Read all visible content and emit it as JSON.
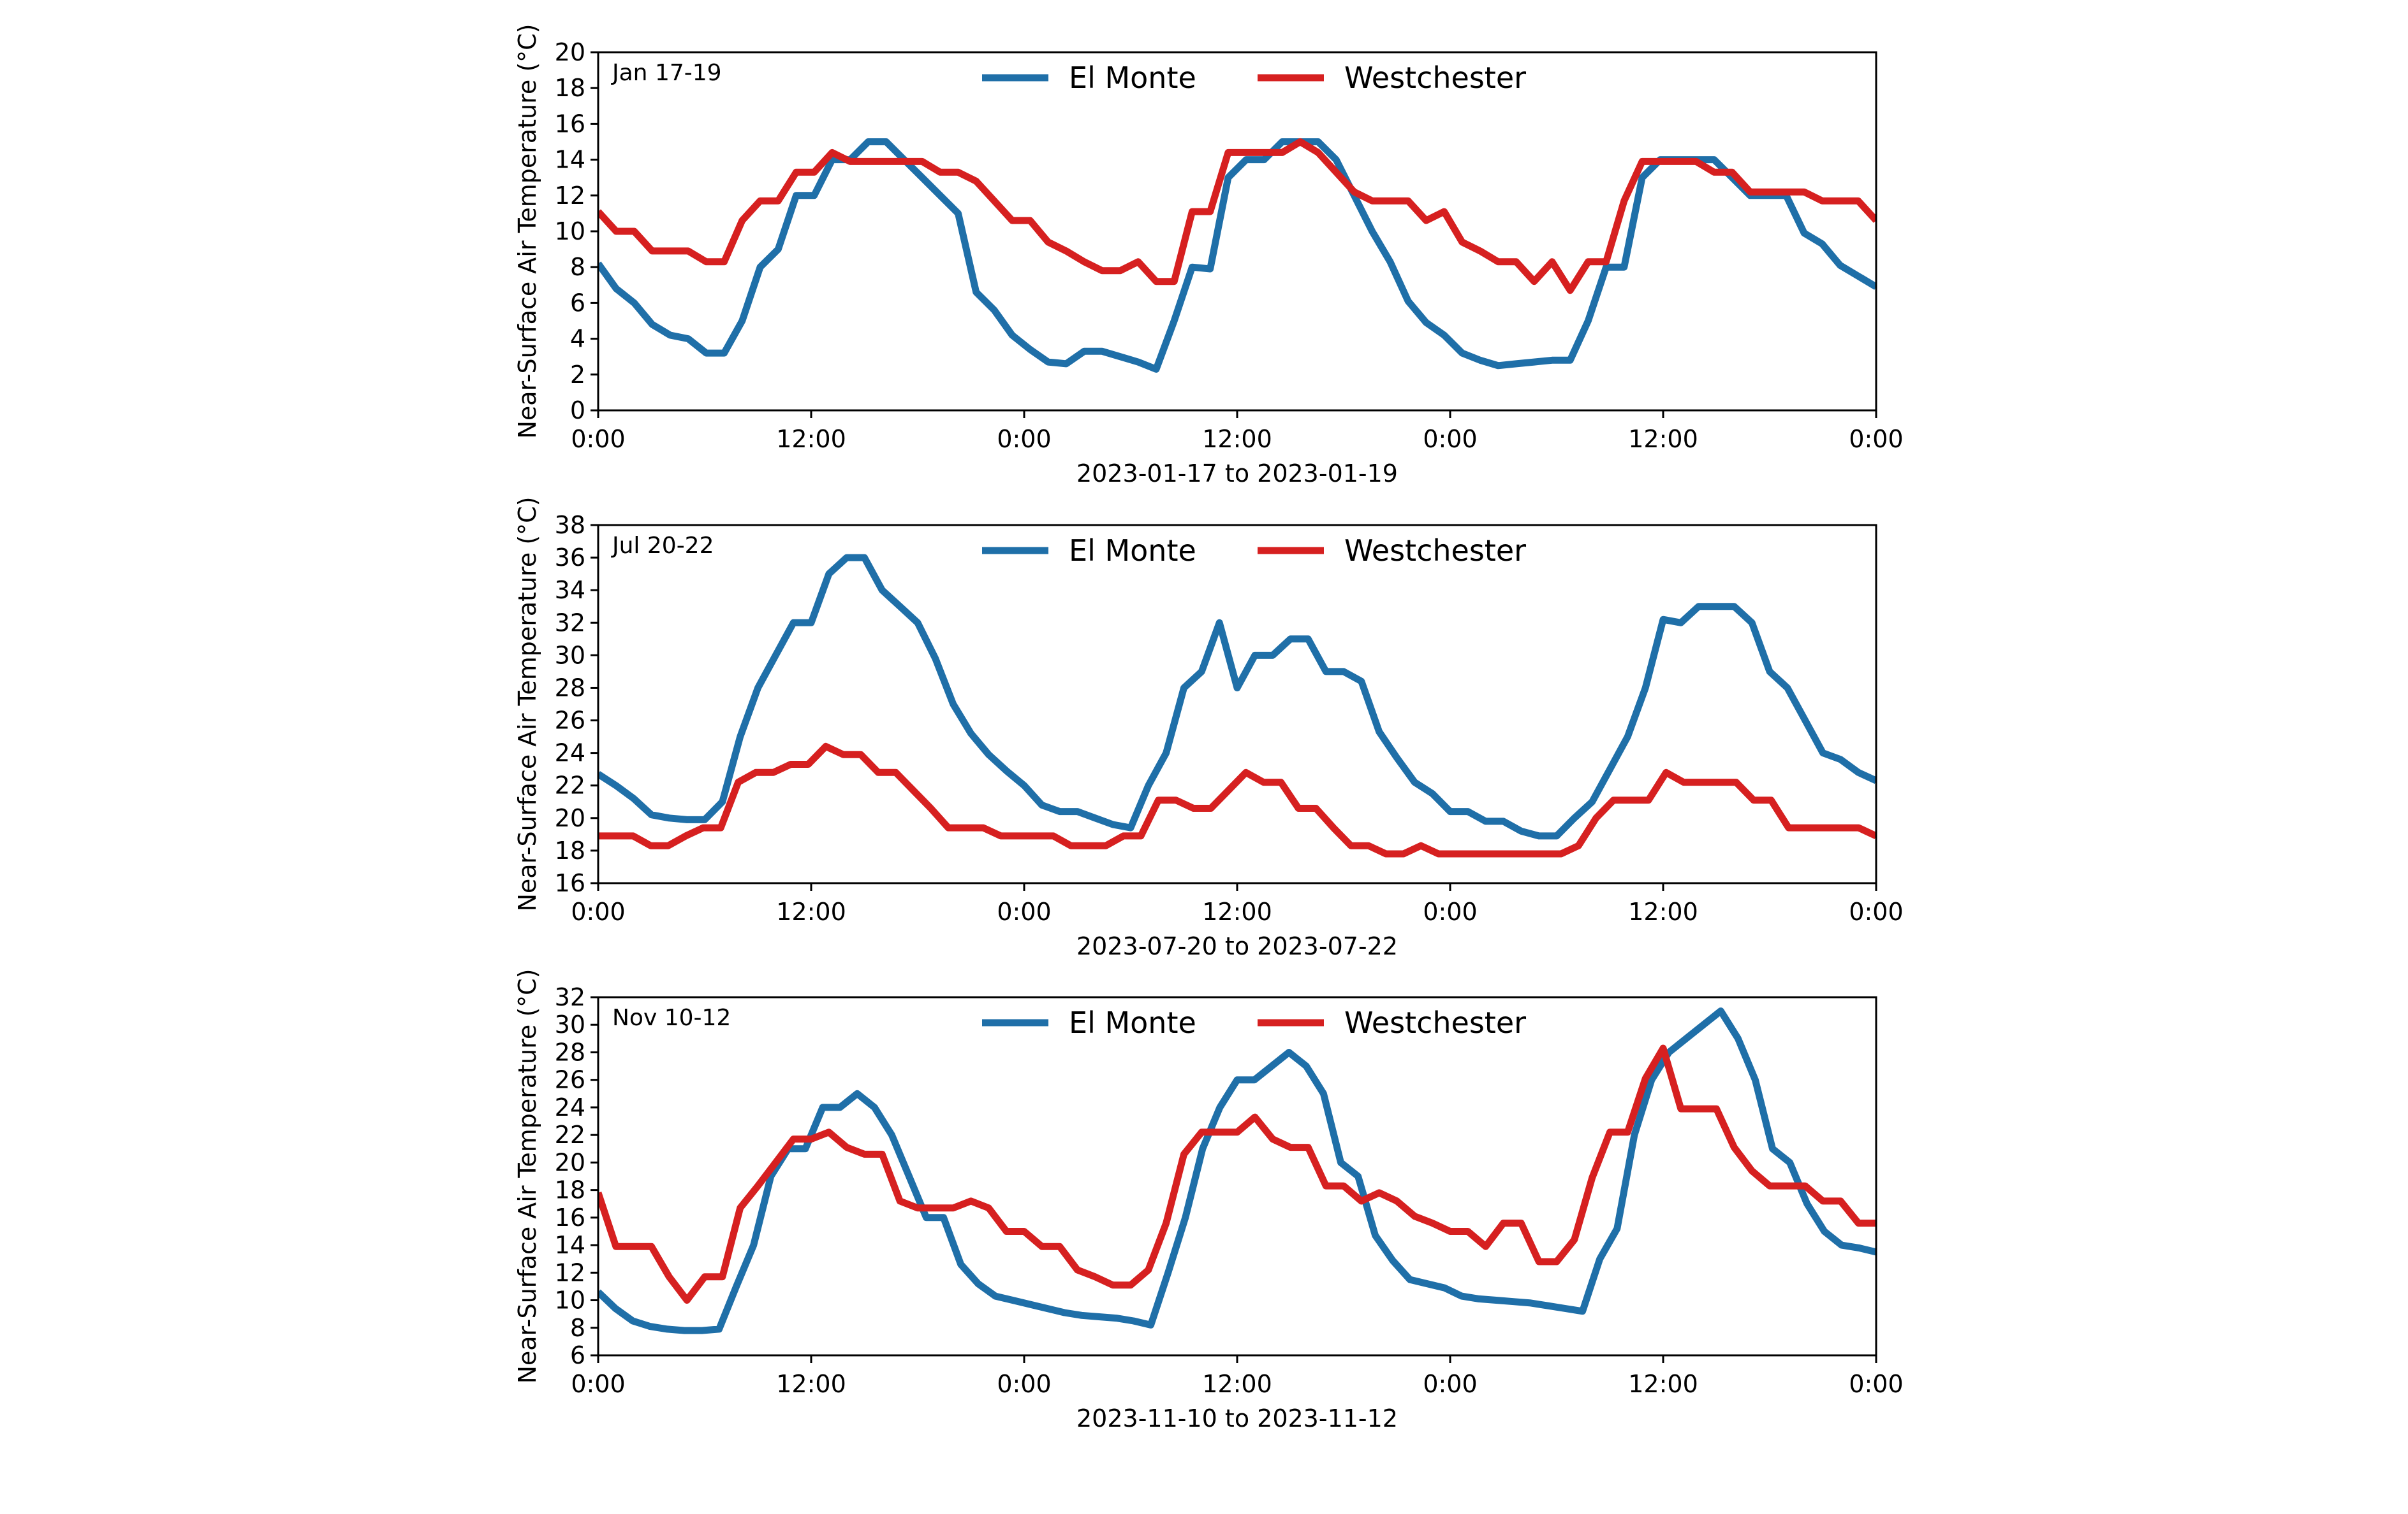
{
  "chart_data": [
    {
      "type": "line",
      "title": "Jan 17-19",
      "xlabel": "2023-01-17 to 2023-01-19",
      "ylabel": "Near-Surface Air Temperature (°C)",
      "ylim": [
        0,
        20
      ],
      "yticks": [
        0,
        2,
        4,
        6,
        8,
        10,
        12,
        14,
        16,
        18,
        20
      ],
      "xlim": [
        0,
        72
      ],
      "xticks": [
        0,
        12,
        24,
        36,
        48,
        60,
        72
      ],
      "xtick_labels": [
        "0:00",
        "12:00",
        "0:00",
        "12:00",
        "0:00",
        "12:00",
        "0:00"
      ],
      "legend": [
        "El Monte",
        "Westchester"
      ],
      "legend_position": "top-center",
      "series": [
        {
          "name": "El Monte",
          "color": "#1f6fa8",
          "values": [
            8.2,
            6.8,
            6.0,
            4.8,
            4.2,
            4.0,
            3.2,
            3.2,
            5.0,
            8.0,
            9.0,
            12.0,
            12.0,
            14.0,
            14.0,
            15.0,
            15.0,
            14.0,
            13.0,
            12.0,
            11.0,
            6.6,
            5.6,
            4.2,
            3.4,
            2.7,
            2.6,
            3.3,
            3.3,
            3.0,
            2.7,
            2.3,
            5.0,
            8.0,
            7.9,
            13.0,
            14.0,
            14.0,
            15.0,
            15.0,
            15.0,
            14.0,
            12.0,
            10.0,
            8.3,
            6.1,
            4.9,
            4.2,
            3.2,
            2.8,
            2.5,
            2.6,
            2.7,
            2.8,
            2.8,
            5.0,
            8.0,
            8.0,
            13.0,
            14.0,
            14.0,
            14.0,
            14.0,
            13.0,
            12.0,
            12.0,
            12.0,
            9.9,
            9.3,
            8.1,
            7.5,
            6.9
          ]
        },
        {
          "name": "Westchester",
          "color": "#d62020",
          "values": [
            11.1,
            10.0,
            10.0,
            8.9,
            8.9,
            8.9,
            8.3,
            8.3,
            10.6,
            11.7,
            11.7,
            13.3,
            13.3,
            14.4,
            13.9,
            13.9,
            13.9,
            13.9,
            13.9,
            13.3,
            13.3,
            12.8,
            11.7,
            10.6,
            10.6,
            9.4,
            8.9,
            8.3,
            7.8,
            7.8,
            8.3,
            7.2,
            7.2,
            11.1,
            11.1,
            14.4,
            14.4,
            14.4,
            14.4,
            15.0,
            14.4,
            13.3,
            12.2,
            11.7,
            11.7,
            11.7,
            10.6,
            11.1,
            9.4,
            8.9,
            8.3,
            8.3,
            7.2,
            8.3,
            6.7,
            8.3,
            8.3,
            11.7,
            13.9,
            13.9,
            13.9,
            13.9,
            13.3,
            13.3,
            12.2,
            12.2,
            12.2,
            12.2,
            11.7,
            11.7,
            11.7,
            10.6
          ]
        }
      ]
    },
    {
      "type": "line",
      "title": "Jul 20-22",
      "xlabel": "2023-07-20 to 2023-07-22",
      "ylabel": "Near-Surface Air Temperature (°C)",
      "ylim": [
        16,
        38
      ],
      "yticks": [
        16,
        18,
        20,
        22,
        24,
        26,
        28,
        30,
        32,
        34,
        36,
        38
      ],
      "xlim": [
        0,
        72
      ],
      "xticks": [
        0,
        12,
        24,
        36,
        48,
        60,
        72
      ],
      "xtick_labels": [
        "0:00",
        "12:00",
        "0:00",
        "12:00",
        "0:00",
        "12:00",
        "0:00"
      ],
      "legend": [
        "El Monte",
        "Westchester"
      ],
      "legend_position": "top-center",
      "series": [
        {
          "name": "El Monte",
          "color": "#1f6fa8",
          "values": [
            22.7,
            22.0,
            21.2,
            20.2,
            20.0,
            19.9,
            19.9,
            21.0,
            25.0,
            28.0,
            30.0,
            32.0,
            32.0,
            35.0,
            36.0,
            36.0,
            34.0,
            33.0,
            32.0,
            29.8,
            27.0,
            25.2,
            23.9,
            22.9,
            22.0,
            20.8,
            20.4,
            20.4,
            20.0,
            19.6,
            19.4,
            22.0,
            24.0,
            28.0,
            29.0,
            32.0,
            28.0,
            30.0,
            30.0,
            31.0,
            31.0,
            29.0,
            29.0,
            28.4,
            25.3,
            23.7,
            22.2,
            21.5,
            20.4,
            20.4,
            19.8,
            19.8,
            19.2,
            18.9,
            18.9,
            20.0,
            21.0,
            23.0,
            25.0,
            28.0,
            32.2,
            32.0,
            33.0,
            33.0,
            33.0,
            32.0,
            29.0,
            28.0,
            26.0,
            24.0,
            23.6,
            22.8,
            22.3
          ]
        },
        {
          "name": "Westchester",
          "color": "#d62020",
          "values": [
            18.9,
            18.9,
            18.9,
            18.3,
            18.3,
            18.9,
            19.4,
            19.4,
            22.2,
            22.8,
            22.8,
            23.3,
            23.3,
            24.4,
            23.9,
            23.9,
            22.8,
            22.8,
            21.7,
            20.6,
            19.4,
            19.4,
            19.4,
            18.9,
            18.9,
            18.9,
            18.9,
            18.3,
            18.3,
            18.3,
            18.9,
            18.9,
            21.1,
            21.1,
            20.6,
            20.6,
            21.7,
            22.8,
            22.2,
            22.2,
            20.6,
            20.6,
            19.4,
            18.3,
            18.3,
            17.8,
            17.8,
            18.3,
            17.8,
            17.8,
            17.8,
            17.8,
            17.8,
            17.8,
            17.8,
            17.8,
            18.3,
            20.0,
            21.1,
            21.1,
            21.1,
            22.8,
            22.2,
            22.2,
            22.2,
            22.2,
            21.1,
            21.1,
            19.4,
            19.4,
            19.4,
            19.4,
            19.4,
            18.9
          ]
        }
      ]
    },
    {
      "type": "line",
      "title": "Nov 10-12",
      "xlabel": "2023-11-10 to 2023-11-12",
      "ylabel": "Near-Surface Air Temperature (°C)",
      "ylim": [
        6,
        32
      ],
      "yticks": [
        6,
        8,
        10,
        12,
        14,
        16,
        18,
        20,
        22,
        24,
        26,
        28,
        30,
        32
      ],
      "xlim": [
        0,
        72
      ],
      "xticks": [
        0,
        12,
        24,
        36,
        48,
        60,
        72
      ],
      "xtick_labels": [
        "0:00",
        "12:00",
        "0:00",
        "12:00",
        "0:00",
        "12:00",
        "0:00"
      ],
      "legend": [
        "El Monte",
        "Westchester"
      ],
      "legend_position": "top-center",
      "series": [
        {
          "name": "El Monte",
          "color": "#1f6fa8",
          "values": [
            10.6,
            9.4,
            8.5,
            8.1,
            7.9,
            7.8,
            7.8,
            7.9,
            11.0,
            14.0,
            19.0,
            21.0,
            21.0,
            24.0,
            24.0,
            25.0,
            24.0,
            22.0,
            19.0,
            16.0,
            16.0,
            12.6,
            11.2,
            10.3,
            10.0,
            9.7,
            9.4,
            9.1,
            8.9,
            8.8,
            8.7,
            8.5,
            8.2,
            12.0,
            16.0,
            21.0,
            24.0,
            26.0,
            26.0,
            27.0,
            28.0,
            27.0,
            25.0,
            20.0,
            19.0,
            14.7,
            12.9,
            11.5,
            11.2,
            10.9,
            10.3,
            10.1,
            10.0,
            9.9,
            9.8,
            9.6,
            9.4,
            9.2,
            13.0,
            15.2,
            22.0,
            26.0,
            28.0,
            29.0,
            30.0,
            31.0,
            29.0,
            26.0,
            21.0,
            20.0,
            17.0,
            15.0,
            14.0,
            13.8,
            13.5
          ]
        },
        {
          "name": "Westchester",
          "color": "#d62020",
          "values": [
            17.8,
            13.9,
            13.9,
            13.9,
            11.7,
            10.0,
            11.7,
            11.7,
            16.7,
            18.3,
            20.0,
            21.7,
            21.7,
            22.2,
            21.1,
            20.6,
            20.6,
            17.2,
            16.7,
            16.7,
            16.7,
            17.2,
            16.7,
            15.0,
            15.0,
            13.9,
            13.9,
            12.2,
            11.7,
            11.1,
            11.1,
            12.2,
            15.6,
            20.6,
            22.2,
            22.2,
            22.2,
            23.3,
            21.7,
            21.1,
            21.1,
            18.3,
            18.3,
            17.2,
            17.8,
            17.2,
            16.1,
            15.6,
            15.0,
            15.0,
            13.9,
            15.6,
            15.6,
            12.8,
            12.8,
            14.4,
            18.9,
            22.2,
            22.2,
            26.1,
            28.3,
            23.9,
            23.9,
            23.9,
            21.1,
            19.4,
            18.3,
            18.3,
            18.3,
            17.2,
            17.2,
            15.6,
            15.6
          ]
        }
      ]
    }
  ]
}
